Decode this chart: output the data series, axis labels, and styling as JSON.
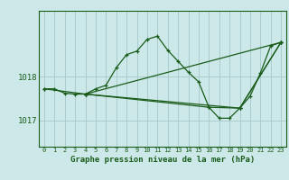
{
  "title": "Graphe pression niveau de la mer (hPa)",
  "background_color": "#cce8e8",
  "grid_color": "#aacccc",
  "line_color": "#1a5c1a",
  "xlim": [
    -0.5,
    23.5
  ],
  "ylim": [
    1016.4,
    1019.5
  ],
  "yticks": [
    1017,
    1018
  ],
  "xticks": [
    0,
    1,
    2,
    3,
    4,
    5,
    6,
    7,
    8,
    9,
    10,
    11,
    12,
    13,
    14,
    15,
    16,
    17,
    18,
    19,
    20,
    21,
    22,
    23
  ],
  "series": [
    {
      "x": [
        0,
        1,
        2,
        3,
        4,
        5,
        6,
        7,
        8,
        9,
        10,
        11,
        12,
        13,
        14,
        15,
        16,
        17,
        18,
        19,
        20,
        21,
        22,
        23
      ],
      "y": [
        1017.72,
        1017.72,
        1017.62,
        1017.6,
        1017.6,
        1017.72,
        1017.8,
        1018.2,
        1018.5,
        1018.58,
        1018.85,
        1018.92,
        1018.6,
        1018.35,
        1018.1,
        1017.88,
        1017.3,
        1017.05,
        1017.05,
        1017.28,
        1017.55,
        1018.08,
        1018.7,
        1018.78
      ]
    },
    {
      "x": [
        0,
        4,
        23
      ],
      "y": [
        1017.72,
        1017.6,
        1018.78
      ]
    },
    {
      "x": [
        4,
        19,
        23
      ],
      "y": [
        1017.6,
        1017.28,
        1018.78
      ]
    },
    {
      "x": [
        4,
        16,
        19,
        23
      ],
      "y": [
        1017.6,
        1017.3,
        1017.28,
        1018.78
      ]
    }
  ]
}
